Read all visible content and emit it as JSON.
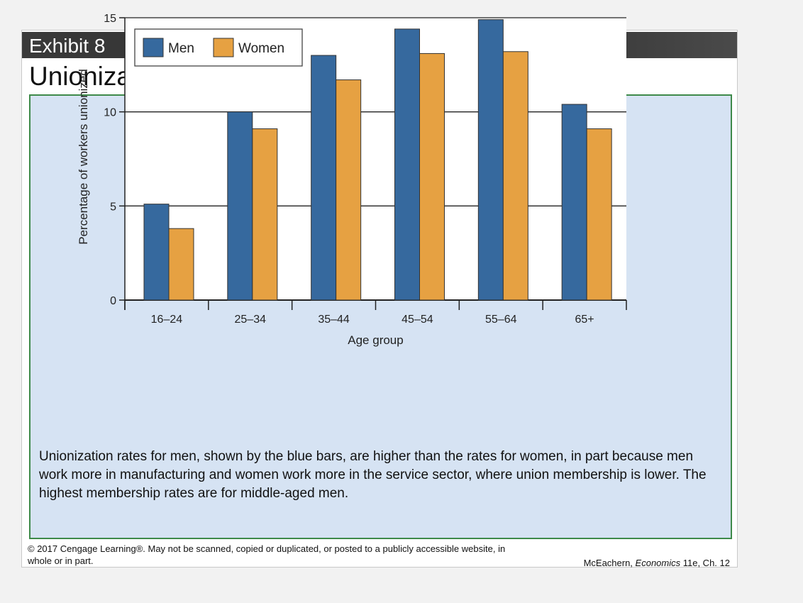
{
  "header": {
    "exhibit": "Exhibit 8",
    "title": "Unionization Rates by Age and Gender"
  },
  "caption": "Unionization rates for men, shown by the blue bars, are higher than the rates for women, in part because men work more in manufacturing and women work more in the service sector, where union membership is lower. The highest membership rates are for middle-aged men.",
  "footer": {
    "copyright": "© 2017 Cengage Learning®. May not be scanned, copied or duplicated, or posted to a publicly accessible website, in whole or in part.",
    "author": "McEachern, ",
    "book": "Economics",
    "edition": " 11e, Ch. 12"
  },
  "colors": {
    "men": "#36699e",
    "women": "#e6a142"
  },
  "chart_data": {
    "type": "bar",
    "xlabel": "Age group",
    "ylabel": "Percentage of workers unionized",
    "categories": [
      "16–24",
      "25–34",
      "35–44",
      "45–54",
      "55–64",
      "65+"
    ],
    "ylim": [
      0,
      15
    ],
    "yticks": [
      0,
      5,
      10,
      15
    ],
    "grid": true,
    "legend": "top-left",
    "series": [
      {
        "name": "Men",
        "values": [
          5.1,
          10.0,
          13.0,
          14.4,
          14.9,
          10.4
        ]
      },
      {
        "name": "Women",
        "values": [
          3.8,
          9.1,
          11.7,
          13.1,
          13.2,
          9.1
        ]
      }
    ]
  }
}
